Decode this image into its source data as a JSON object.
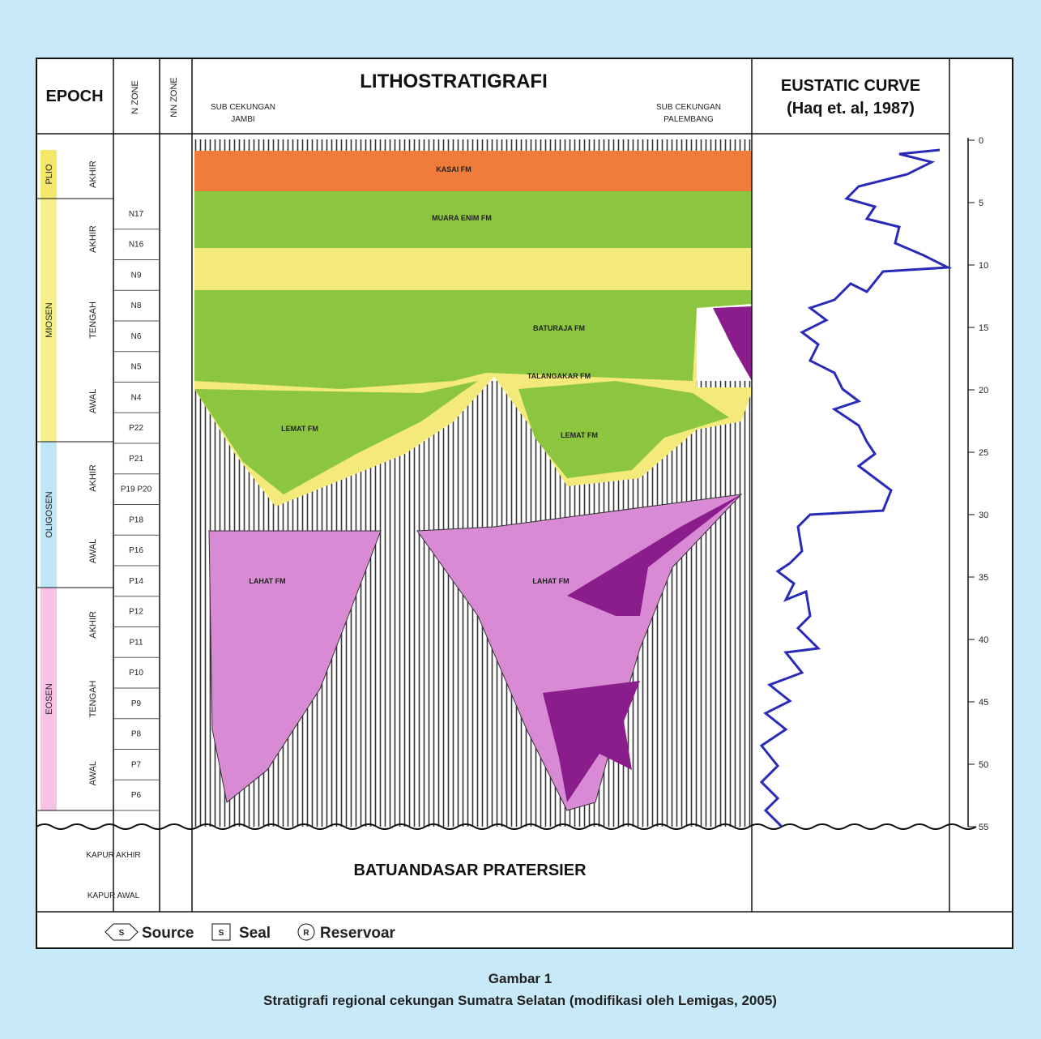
{
  "header": {
    "epoch": "EPOCH",
    "n_zone": "N ZONE",
    "nn_zone": "NN ZONE",
    "litho": "LITHOSTRATIGRAFI",
    "left_basin": [
      "SUB CEKUNGAN",
      "JAMBI"
    ],
    "right_basin": [
      "SUB CEKUNGAN",
      "PALEMBANG"
    ],
    "eustatic": "EUSTATIC CURVE",
    "eustatic_ref": "(Haq et. al, 1987)"
  },
  "epochs": [
    {
      "name": "PLIO",
      "sub": [
        "AKHIR"
      ]
    },
    {
      "name": "MIOSEN",
      "sub": [
        "AKHIR",
        "TENGAH",
        "AWAL"
      ]
    },
    {
      "name": "OLIGOSEN",
      "sub": [
        "AKHIR",
        "AWAL"
      ]
    },
    {
      "name": "EOSEN",
      "sub": [
        "AKHIR",
        "TENGAH",
        "AWAL"
      ]
    }
  ],
  "n_zones": [
    "N17",
    "N16",
    "N9",
    "N8",
    "N6",
    "N5",
    "N4",
    "P22",
    "P21",
    "P19 P20",
    "P18",
    "P16",
    "P14",
    "P12",
    "P11",
    "P10",
    "P9",
    "P8",
    "P7",
    "P6"
  ],
  "formations": [
    "KASAI FM",
    "MUARA ENIM FM",
    "BATURAJA FM",
    "TALANGAKAR FM",
    "LEMAT FM",
    "LEMAT FM",
    "LAHAT FM",
    "LAHAT FM"
  ],
  "basement_age": [
    "KAPUR AKHIR",
    "KAPUR AWAL"
  ],
  "basement": "BATUANDASAR PRATERSIER",
  "scale": [
    "0",
    "5",
    "10",
    "15",
    "20",
    "25",
    "30",
    "35",
    "40",
    "45",
    "50",
    "55"
  ],
  "legend": [
    {
      "symbol": "S",
      "label": "Source"
    },
    {
      "symbol": "S",
      "label": "Seal"
    },
    {
      "symbol": "R",
      "label": "Reservoar"
    }
  ],
  "caption": {
    "title": "Gambar 1",
    "text": "Stratigrafi regional cekungan Sumatra Selatan (modifikasi oleh Lemigas, 2005)"
  }
}
